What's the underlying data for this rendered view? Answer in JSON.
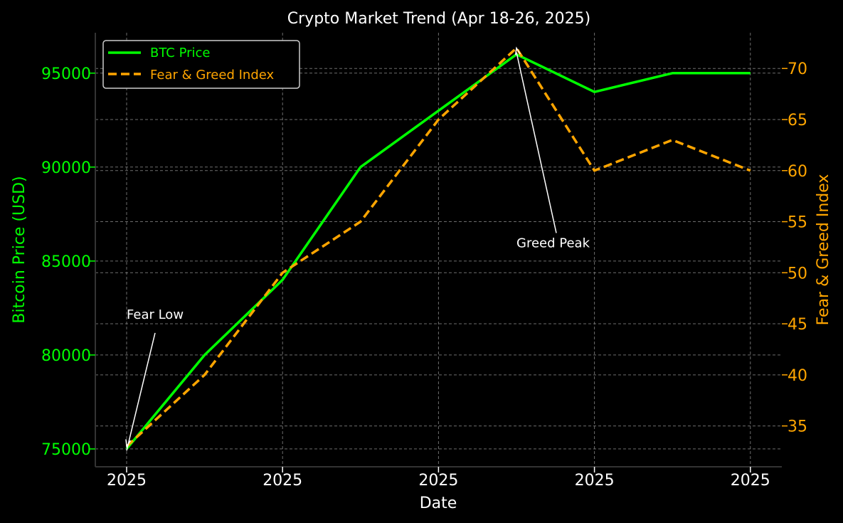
{
  "chart_data": {
    "type": "line",
    "title": "Crypto Market Trend (Apr 18-26, 2025)",
    "xlabel": "Date",
    "ylabel_left": "Bitcoin Price (USD)",
    "ylabel_right": "Fear & Greed Index",
    "x": [
      0,
      1,
      2,
      3,
      4,
      5,
      6,
      7,
      8
    ],
    "x_ticks": [
      0,
      2,
      4,
      6,
      8
    ],
    "x_tick_labels": [
      "2025",
      "2025",
      "2025",
      "2025",
      "2025"
    ],
    "y_left_ticks": [
      75000,
      80000,
      85000,
      90000,
      95000
    ],
    "y_right_ticks": [
      35,
      40,
      45,
      50,
      55,
      60,
      65,
      70
    ],
    "y_left_range": [
      74050,
      97150
    ],
    "y_right_range": [
      31.0,
      73.5
    ],
    "grid": true,
    "legend_position": "top-left",
    "series": [
      {
        "name": "BTC Price",
        "axis": "left",
        "style": "solid",
        "color": "#00ff00",
        "values": [
          75000,
          80000,
          84000,
          90000,
          93000,
          96000,
          94000,
          95000,
          95000
        ]
      },
      {
        "name": "Fear & Greed Index",
        "axis": "right",
        "style": "dashed",
        "color": "#ffa500",
        "values": [
          33,
          40,
          50,
          55,
          65,
          72,
          60,
          63,
          60
        ]
      }
    ],
    "annotations": [
      {
        "text": "Fear Low",
        "x": 0,
        "series": 1,
        "value": 33,
        "text_x": 0,
        "text_value": 45.5
      },
      {
        "text": "Greed Peak",
        "x": 5,
        "series": 1,
        "value": 72,
        "text_x": 5,
        "text_value": 52.5
      }
    ]
  },
  "colors": {
    "btc": "#00ff00",
    "fear_greed": "#ffa500",
    "text": "#ffffff",
    "grid": "#808080"
  }
}
